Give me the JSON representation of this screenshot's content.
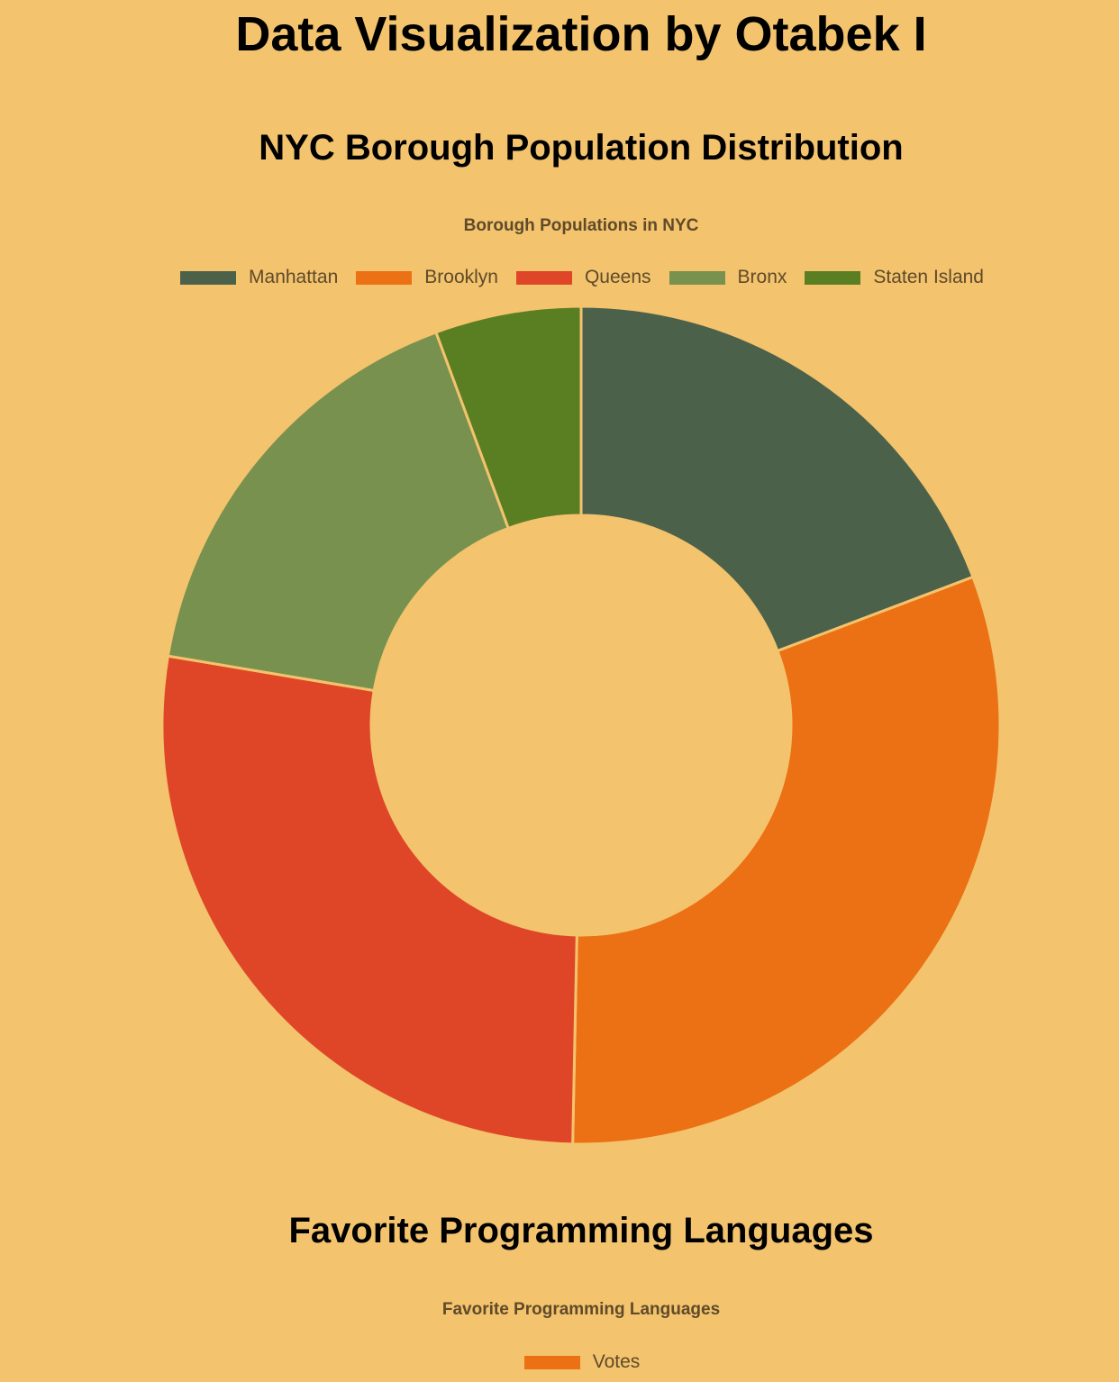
{
  "page": {
    "title": "Data Visualization by Otabek I"
  },
  "sections": {
    "nyc_heading": "NYC Borough Population Distribution",
    "languages_heading": "Favorite Programming Languages"
  },
  "colors": {
    "background": "#F3C36D",
    "slice_border": "#F3C36D",
    "subtitle_text": "#5F4A2A"
  },
  "chart_data": [
    {
      "type": "pie",
      "variant": "doughnut",
      "title": "Borough Populations in NYC",
      "legend_placement": "top",
      "categories": [
        "Manhattan",
        "Brooklyn",
        "Queens",
        "Bronx",
        "Staten Island"
      ],
      "values": [
        1694251,
        2736074,
        2405464,
        1472654,
        495747
      ],
      "colors": [
        "#4C614A",
        "#EC7014",
        "#DF4627",
        "#79914E",
        "#5A7E22"
      ]
    },
    {
      "type": "bar",
      "title": "Favorite Programming Languages",
      "legend_placement": "top",
      "series": [
        {
          "name": "Votes",
          "color": "#EC7014"
        }
      ]
    }
  ]
}
